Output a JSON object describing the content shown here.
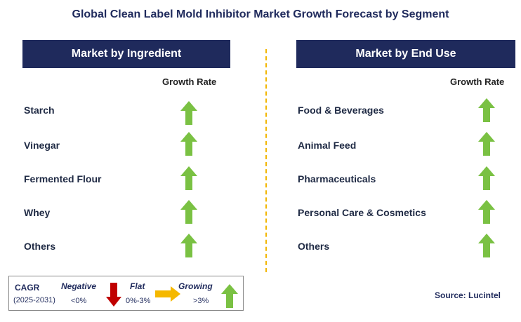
{
  "title": "Global Clean Label Mold Inhibitor Market Growth Forecast by Segment",
  "colors": {
    "header_bg": "#1f2a5c",
    "growing": "#7ac143",
    "negative": "#c00000",
    "flat": "#f5b800",
    "divider": "#f2b705"
  },
  "left_panel": {
    "header": "Market by Ingredient",
    "growth_rate_label": "Growth Rate",
    "items": [
      {
        "label": "Starch",
        "trend": "growing-arrow-icon"
      },
      {
        "label": "Vinegar",
        "trend": "growing-arrow-icon"
      },
      {
        "label": "Fermented Flour",
        "trend": "growing-arrow-icon"
      },
      {
        "label": "Whey",
        "trend": "growing-arrow-icon"
      },
      {
        "label": "Others",
        "trend": "growing-arrow-icon"
      }
    ]
  },
  "right_panel": {
    "header": "Market by End Use",
    "growth_rate_label": "Growth Rate",
    "items": [
      {
        "label": "Food & Beverages",
        "trend": "growing-arrow-icon"
      },
      {
        "label": "Animal Feed",
        "trend": "growing-arrow-icon"
      },
      {
        "label": "Pharmaceuticals",
        "trend": "growing-arrow-icon"
      },
      {
        "label": "Personal Care & Cosmetics",
        "trend": "growing-arrow-icon"
      },
      {
        "label": "Others",
        "trend": "growing-arrow-icon"
      }
    ]
  },
  "legend": {
    "cagr": "CAGR",
    "period": "(2025-2031)",
    "negative_label": "Negative",
    "negative_value": "<0%",
    "flat_label": "Flat",
    "flat_value": "0%-3%",
    "growing_label": "Growing",
    "growing_value": ">3%"
  },
  "source": "Source: Lucintel"
}
